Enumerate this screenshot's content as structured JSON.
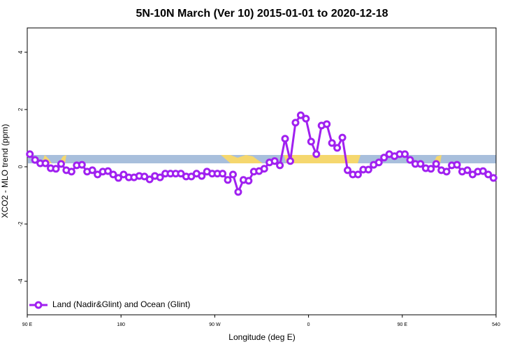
{
  "chart_data": {
    "type": "line",
    "title": "5N-10N March (Ver 10)   2015-01-01 to 2020-12-18",
    "x_label": "Longitude (deg E)",
    "y_label": "XCO2 - MLO trend (ppm)",
    "x": [
      92.5,
      97.5,
      102.5,
      107.5,
      112.5,
      117.5,
      122.5,
      127.5,
      132.5,
      137.5,
      142.5,
      147.5,
      152.5,
      157.5,
      162.5,
      167.5,
      172.5,
      177.5,
      182.5,
      187.5,
      192.5,
      197.5,
      202.5,
      207.5,
      212.5,
      217.5,
      222.5,
      227.5,
      232.5,
      237.5,
      242.5,
      247.5,
      252.5,
      257.5,
      262.5,
      267.5,
      272.5,
      277.5,
      282.5,
      287.5,
      292.5,
      297.5,
      302.5,
      307.5,
      312.5,
      317.5,
      322.5,
      327.5,
      332.5,
      337.5,
      342.5,
      347.5,
      352.5,
      357.5,
      362.5,
      367.5,
      372.5,
      377.5,
      382.5,
      387.5,
      392.5,
      397.5,
      402.5,
      407.5,
      412.5,
      417.5,
      422.5,
      427.5,
      432.5,
      437.5,
      442.5,
      447.5,
      452.5,
      457.5,
      462.5,
      467.5,
      472.5,
      477.5,
      482.5,
      487.5,
      492.5,
      497.5,
      502.5,
      507.5,
      512.5,
      517.5,
      522.5,
      527.5,
      532.5,
      537.5
    ],
    "series": [
      {
        "name": "Land (Nadir&Glint) and Ocean (Glint)",
        "color": "#a020f0",
        "values": [
          0.44,
          0.24,
          0.12,
          0.12,
          -0.05,
          -0.07,
          0.1,
          -0.12,
          -0.17,
          0.05,
          0.07,
          -0.17,
          -0.12,
          -0.27,
          -0.17,
          -0.15,
          -0.27,
          -0.39,
          -0.27,
          -0.37,
          -0.37,
          -0.32,
          -0.34,
          -0.44,
          -0.32,
          -0.37,
          -0.24,
          -0.24,
          -0.24,
          -0.24,
          -0.34,
          -0.34,
          -0.24,
          -0.32,
          -0.17,
          -0.24,
          -0.24,
          -0.24,
          -0.46,
          -0.27,
          -0.88,
          -0.46,
          -0.49,
          -0.17,
          -0.15,
          -0.07,
          0.15,
          0.2,
          0.05,
          0.98,
          0.2,
          1.54,
          1.8,
          1.68,
          0.88,
          0.44,
          1.44,
          1.49,
          0.83,
          0.66,
          1.02,
          -0.12,
          -0.27,
          -0.27,
          -0.1,
          -0.1,
          0.07,
          0.15,
          0.32,
          0.44,
          0.37,
          0.44,
          0.44,
          0.24,
          0.1,
          0.1,
          -0.05,
          -0.07,
          0.1,
          -0.12,
          -0.17,
          0.05,
          0.07,
          -0.17,
          -0.12,
          -0.27,
          -0.17,
          -0.15,
          -0.27,
          -0.39
        ]
      }
    ],
    "xlim": [
      90,
      540
    ],
    "xticks": [
      {
        "value": 90,
        "label": "90 E"
      },
      180,
      {
        "value": 270,
        "label": "90 W"
      },
      {
        "value": 360,
        "label": "0"
      },
      {
        "value": 450,
        "label": "90 E"
      },
      540
    ],
    "ylim": [
      -5.17,
      4.85
    ],
    "yticks": [
      -4,
      -2,
      0,
      2,
      4
    ],
    "legend": "bottom-left"
  }
}
